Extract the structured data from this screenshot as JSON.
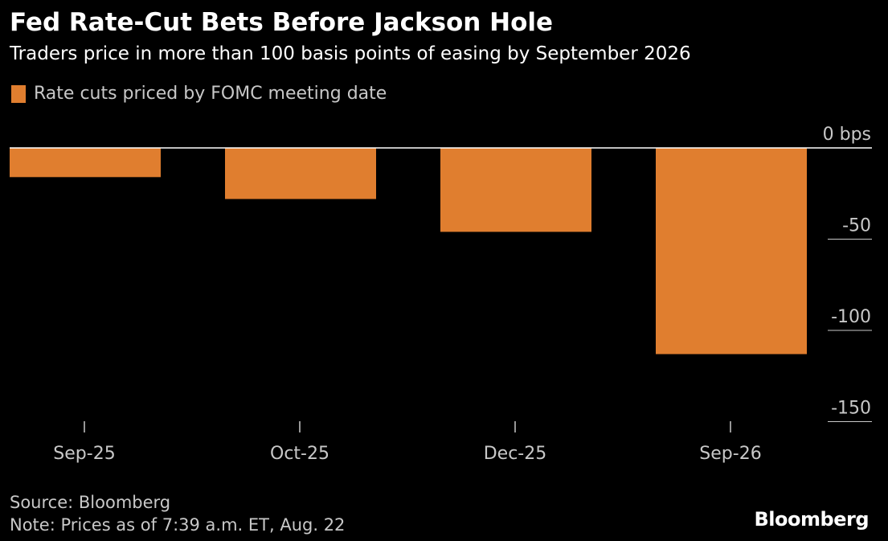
{
  "header": {
    "title": "Fed Rate-Cut Bets Before Jackson Hole",
    "subtitle": "Traders price in more than 100 basis points of easing by September 2026"
  },
  "legend": {
    "label": "Rate cuts priced by FOMC meeting date"
  },
  "footer": {
    "source": "Source: Bloomberg",
    "note": "Note: Prices as of 7:39 a.m. ET, Aug. 22",
    "brand": "Bloomberg"
  },
  "colors": {
    "bar": "#e07e2f",
    "background": "#000000",
    "axis_text": "#c8c8c8",
    "zero_line": "#ffffff"
  },
  "chart_data": {
    "type": "bar",
    "title": "Fed Rate-Cut Bets Before Jackson Hole",
    "subtitle": "Traders price in more than 100 basis points of easing by September 2026",
    "categories": [
      "Sep-25",
      "Oct-25",
      "Dec-25",
      "Sep-26"
    ],
    "series": [
      {
        "name": "Rate cuts priced by FOMC meeting date",
        "values": [
          -16,
          -28,
          -46,
          -113
        ]
      }
    ],
    "xlabel": "",
    "ylabel": "",
    "ylim": [
      -150,
      0
    ],
    "yticks": [
      0,
      -50,
      -100,
      -150
    ],
    "ytick_labels": [
      "0 bps",
      "-50",
      "-100",
      "-150"
    ],
    "y_axis_position": "right",
    "grid": false,
    "legend_position": "top-left"
  }
}
